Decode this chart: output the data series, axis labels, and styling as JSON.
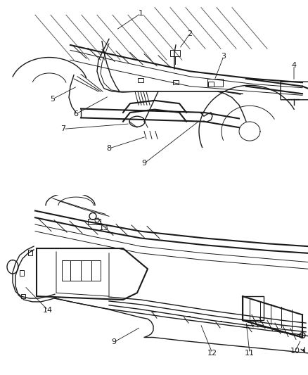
{
  "bg": "#ffffff",
  "fg": "#1a1a1a",
  "fig_w": 4.38,
  "fig_h": 5.33,
  "dpi": 100
}
